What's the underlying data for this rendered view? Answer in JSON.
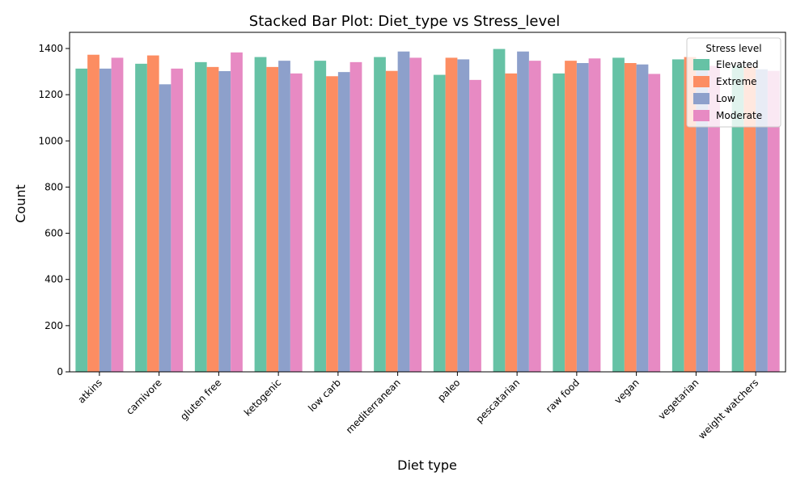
{
  "chart_data": {
    "type": "bar",
    "title": "Stacked Bar Plot: Diet_type vs Stress_level",
    "xlabel": "Diet type",
    "ylabel": "Count",
    "ylim": [
      0,
      1470
    ],
    "yticks": [
      0,
      200,
      400,
      600,
      800,
      1000,
      1200,
      1400
    ],
    "grid": false,
    "legend": {
      "title": "Stress level",
      "placement": "top-right"
    },
    "categories": [
      "atkins",
      "carnivore",
      "gluten free",
      "ketogenic",
      "low carb",
      "mediterranean",
      "paleo",
      "pescatarian",
      "raw food",
      "vegan",
      "vegetarian",
      "weight watchers"
    ],
    "series": [
      {
        "name": "Elevated",
        "color": "#66c2a5",
        "values": [
          1313,
          1334,
          1341,
          1363,
          1347,
          1363,
          1286,
          1398,
          1292,
          1360,
          1353,
          1325
        ]
      },
      {
        "name": "Extreme",
        "color": "#fc8d62",
        "values": [
          1373,
          1370,
          1320,
          1320,
          1280,
          1303,
          1360,
          1292,
          1347,
          1337,
          1363,
          1320
        ]
      },
      {
        "name": "Low",
        "color": "#8da0cb",
        "values": [
          1313,
          1245,
          1302,
          1347,
          1298,
          1387,
          1353,
          1387,
          1337,
          1331,
          1330,
          1310
        ]
      },
      {
        "name": "Moderate",
        "color": "#e78ac3",
        "values": [
          1360,
          1313,
          1383,
          1292,
          1341,
          1360,
          1264,
          1347,
          1357,
          1290,
          1325,
          1303
        ]
      }
    ]
  }
}
